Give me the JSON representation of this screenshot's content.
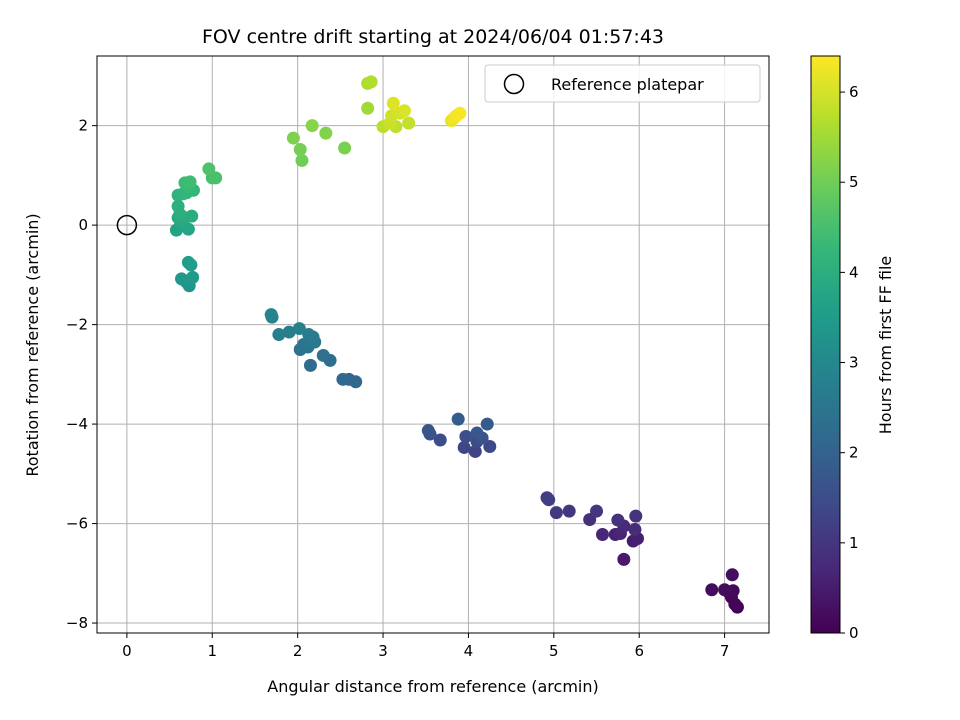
{
  "chart_data": {
    "type": "scatter",
    "title": "FOV centre drift starting at 2024/06/04 01:57:43",
    "xlabel": "Angular distance from reference (arcmin)",
    "ylabel": "Rotation from reference (arcmin)",
    "xlim": [
      -0.35,
      7.52
    ],
    "ylim": [
      -8.2,
      3.4
    ],
    "xticks": [
      0,
      1,
      2,
      3,
      4,
      5,
      6,
      7
    ],
    "yticks": [
      -8,
      -6,
      -4,
      -2,
      0,
      2
    ],
    "grid": true,
    "legend": {
      "placement": "top-right",
      "entries": [
        "Reference platepar"
      ]
    },
    "reference_point": {
      "x": 0,
      "y": 0
    },
    "colormap": "viridis",
    "colorbar": {
      "label": "Hours from first FF file",
      "range": [
        0,
        6.4
      ],
      "ticks": [
        0,
        1,
        2,
        3,
        4,
        5,
        6
      ]
    },
    "points": [
      {
        "x": 7.15,
        "y": -7.68,
        "c": 0.02
      },
      {
        "x": 7.12,
        "y": -7.62,
        "c": 0.05
      },
      {
        "x": 7.08,
        "y": -7.48,
        "c": 0.08
      },
      {
        "x": 7.05,
        "y": -7.38,
        "c": 0.12
      },
      {
        "x": 7.1,
        "y": -7.35,
        "c": 0.15
      },
      {
        "x": 7.0,
        "y": -7.33,
        "c": 0.18
      },
      {
        "x": 6.85,
        "y": -7.33,
        "c": 0.22
      },
      {
        "x": 7.09,
        "y": -7.03,
        "c": 0.25
      },
      {
        "x": 5.82,
        "y": -6.72,
        "c": 0.45
      },
      {
        "x": 5.93,
        "y": -6.35,
        "c": 0.5
      },
      {
        "x": 5.98,
        "y": -6.3,
        "c": 0.55
      },
      {
        "x": 5.72,
        "y": -6.22,
        "c": 0.6
      },
      {
        "x": 5.78,
        "y": -6.2,
        "c": 0.65
      },
      {
        "x": 5.57,
        "y": -6.22,
        "c": 0.7
      },
      {
        "x": 5.82,
        "y": -6.05,
        "c": 0.75
      },
      {
        "x": 5.95,
        "y": -6.12,
        "c": 0.8
      },
      {
        "x": 5.42,
        "y": -5.92,
        "c": 0.85
      },
      {
        "x": 5.75,
        "y": -5.93,
        "c": 0.9
      },
      {
        "x": 5.96,
        "y": -5.85,
        "c": 0.95
      },
      {
        "x": 5.5,
        "y": -5.75,
        "c": 1.0
      },
      {
        "x": 5.18,
        "y": -5.75,
        "c": 1.05
      },
      {
        "x": 5.03,
        "y": -5.78,
        "c": 1.1
      },
      {
        "x": 4.92,
        "y": -5.48,
        "c": 1.15
      },
      {
        "x": 4.94,
        "y": -5.52,
        "c": 1.18
      },
      {
        "x": 4.08,
        "y": -4.55,
        "c": 1.3
      },
      {
        "x": 3.95,
        "y": -4.47,
        "c": 1.35
      },
      {
        "x": 4.25,
        "y": -4.45,
        "c": 1.4
      },
      {
        "x": 4.1,
        "y": -4.35,
        "c": 1.45
      },
      {
        "x": 3.67,
        "y": -4.32,
        "c": 1.5
      },
      {
        "x": 3.97,
        "y": -4.25,
        "c": 1.55
      },
      {
        "x": 4.16,
        "y": -4.28,
        "c": 1.6
      },
      {
        "x": 3.55,
        "y": -4.2,
        "c": 1.65
      },
      {
        "x": 3.53,
        "y": -4.13,
        "c": 1.7
      },
      {
        "x": 4.1,
        "y": -4.18,
        "c": 1.75
      },
      {
        "x": 4.22,
        "y": -4.0,
        "c": 1.8
      },
      {
        "x": 3.88,
        "y": -3.9,
        "c": 1.85
      },
      {
        "x": 2.6,
        "y": -3.1,
        "c": 2.05
      },
      {
        "x": 2.68,
        "y": -3.15,
        "c": 2.1
      },
      {
        "x": 2.53,
        "y": -3.1,
        "c": 2.15
      },
      {
        "x": 2.15,
        "y": -2.82,
        "c": 2.25
      },
      {
        "x": 2.38,
        "y": -2.72,
        "c": 2.3
      },
      {
        "x": 2.3,
        "y": -2.62,
        "c": 2.35
      },
      {
        "x": 2.03,
        "y": -2.5,
        "c": 2.4
      },
      {
        "x": 2.12,
        "y": -2.45,
        "c": 2.45
      },
      {
        "x": 2.07,
        "y": -2.4,
        "c": 2.5
      },
      {
        "x": 2.2,
        "y": -2.35,
        "c": 2.55
      },
      {
        "x": 2.18,
        "y": -2.25,
        "c": 2.6
      },
      {
        "x": 2.13,
        "y": -2.2,
        "c": 2.65
      },
      {
        "x": 1.78,
        "y": -2.2,
        "c": 2.7
      },
      {
        "x": 1.9,
        "y": -2.15,
        "c": 2.75
      },
      {
        "x": 2.02,
        "y": -2.08,
        "c": 2.8
      },
      {
        "x": 1.7,
        "y": -1.85,
        "c": 2.85
      },
      {
        "x": 1.69,
        "y": -1.8,
        "c": 2.9
      },
      {
        "x": 0.73,
        "y": -1.22,
        "c": 3.3
      },
      {
        "x": 0.7,
        "y": -1.15,
        "c": 3.35
      },
      {
        "x": 0.64,
        "y": -1.08,
        "c": 3.4
      },
      {
        "x": 0.77,
        "y": -1.05,
        "c": 3.45
      },
      {
        "x": 0.75,
        "y": -0.8,
        "c": 3.5
      },
      {
        "x": 0.72,
        "y": -0.75,
        "c": 3.55
      },
      {
        "x": 0.58,
        "y": -0.1,
        "c": 3.7
      },
      {
        "x": 0.72,
        "y": -0.08,
        "c": 3.75
      },
      {
        "x": 0.63,
        "y": 0.05,
        "c": 3.8
      },
      {
        "x": 0.6,
        "y": 0.15,
        "c": 3.85
      },
      {
        "x": 0.68,
        "y": 0.15,
        "c": 3.9
      },
      {
        "x": 0.76,
        "y": 0.18,
        "c": 3.95
      },
      {
        "x": 0.62,
        "y": 0.22,
        "c": 4.0
      },
      {
        "x": 0.6,
        "y": 0.38,
        "c": 4.05
      },
      {
        "x": 0.6,
        "y": 0.6,
        "c": 4.1
      },
      {
        "x": 0.66,
        "y": 0.63,
        "c": 4.15
      },
      {
        "x": 0.7,
        "y": 0.65,
        "c": 4.2
      },
      {
        "x": 0.78,
        "y": 0.7,
        "c": 4.25
      },
      {
        "x": 0.72,
        "y": 0.78,
        "c": 4.3
      },
      {
        "x": 0.68,
        "y": 0.85,
        "c": 4.35
      },
      {
        "x": 0.74,
        "y": 0.87,
        "c": 4.4
      },
      {
        "x": 1.0,
        "y": 0.95,
        "c": 4.5
      },
      {
        "x": 1.04,
        "y": 0.95,
        "c": 4.55
      },
      {
        "x": 0.96,
        "y": 1.13,
        "c": 4.6
      },
      {
        "x": 2.05,
        "y": 1.3,
        "c": 5.0
      },
      {
        "x": 2.03,
        "y": 1.52,
        "c": 5.05
      },
      {
        "x": 2.55,
        "y": 1.55,
        "c": 5.1
      },
      {
        "x": 1.95,
        "y": 1.75,
        "c": 5.15
      },
      {
        "x": 2.33,
        "y": 1.85,
        "c": 5.2
      },
      {
        "x": 2.17,
        "y": 2.0,
        "c": 5.25
      },
      {
        "x": 2.82,
        "y": 2.35,
        "c": 5.5
      },
      {
        "x": 2.82,
        "y": 2.85,
        "c": 5.6
      },
      {
        "x": 2.86,
        "y": 2.88,
        "c": 5.65
      },
      {
        "x": 3.0,
        "y": 1.98,
        "c": 5.75
      },
      {
        "x": 3.15,
        "y": 1.98,
        "c": 5.8
      },
      {
        "x": 3.3,
        "y": 2.05,
        "c": 5.85
      },
      {
        "x": 3.08,
        "y": 2.05,
        "c": 5.9
      },
      {
        "x": 3.1,
        "y": 2.2,
        "c": 5.95
      },
      {
        "x": 3.2,
        "y": 2.25,
        "c": 6.0
      },
      {
        "x": 3.25,
        "y": 2.3,
        "c": 6.05
      },
      {
        "x": 3.12,
        "y": 2.45,
        "c": 6.1
      },
      {
        "x": 3.8,
        "y": 2.1,
        "c": 6.2
      },
      {
        "x": 3.83,
        "y": 2.15,
        "c": 6.25
      },
      {
        "x": 3.86,
        "y": 2.2,
        "c": 6.3
      },
      {
        "x": 3.9,
        "y": 2.25,
        "c": 6.35
      }
    ]
  }
}
